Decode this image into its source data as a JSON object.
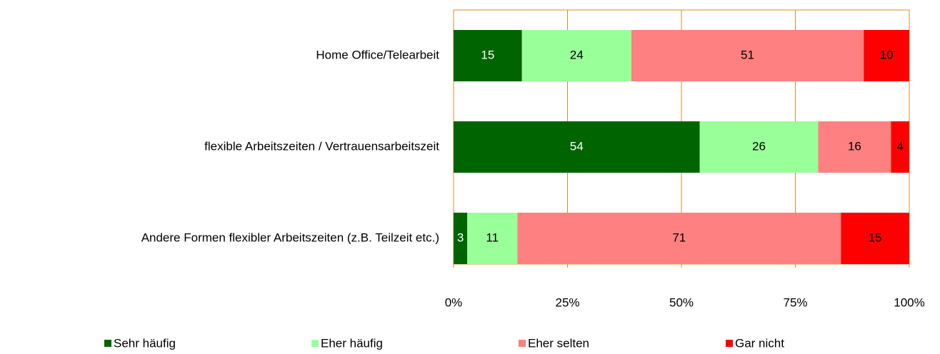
{
  "chart_data": {
    "type": "stacked_barh",
    "categories": [
      "Home Office/Telearbeit",
      "flexible Arbeitszeiten / Vertrauensarbeitszeit",
      "Andere Formen flexibler  Arbeitszeiten (z.B. Teilzeit etc.)"
    ],
    "series": [
      {
        "name": "Sehr häufig",
        "color": "#006400",
        "values": [
          15,
          54,
          3
        ]
      },
      {
        "name": "Eher häufig",
        "color": "#99ff99",
        "values": [
          24,
          26,
          11
        ]
      },
      {
        "name": "Eher selten",
        "color": "#ff8080",
        "values": [
          51,
          16,
          71
        ]
      },
      {
        "name": "Gar nicht",
        "color": "#ff0000",
        "values": [
          10,
          4,
          15
        ]
      }
    ],
    "xlim": [
      0,
      100
    ],
    "xticks": [
      {
        "value": 0,
        "label": "0%"
      },
      {
        "value": 25,
        "label": "25%"
      },
      {
        "value": 50,
        "label": "50%"
      },
      {
        "value": 75,
        "label": "75%"
      },
      {
        "value": 100,
        "label": "100%"
      }
    ],
    "grid": true,
    "grid_color": "#d98b2b",
    "legend": "bottom"
  }
}
